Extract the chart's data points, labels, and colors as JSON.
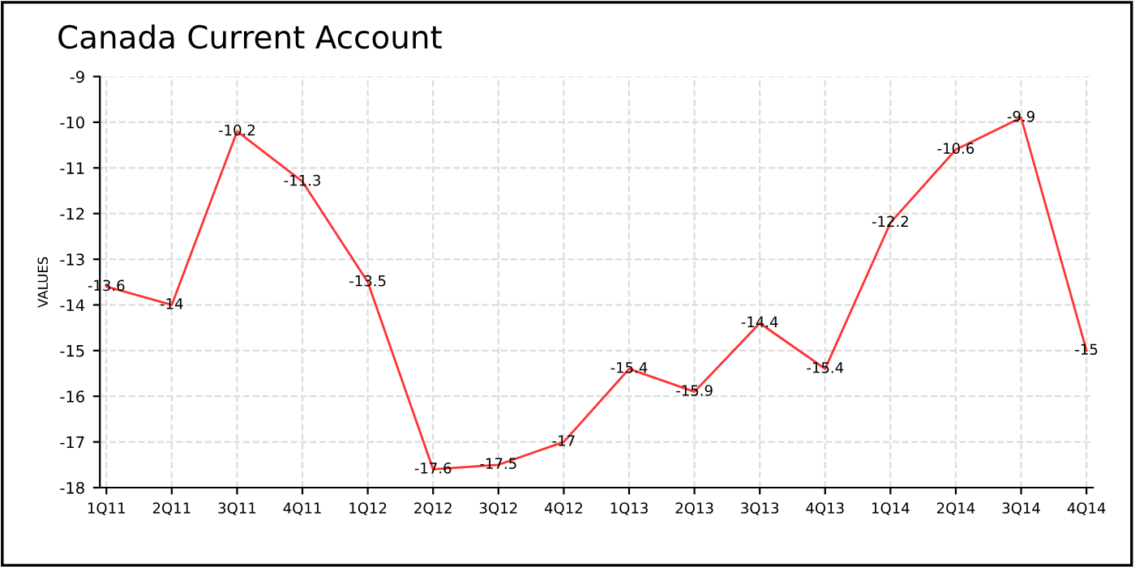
{
  "chart_data": {
    "type": "line",
    "title": "Canada Current Account",
    "ylabel": "VALUES",
    "categories": [
      "1Q11",
      "2Q11",
      "3Q11",
      "4Q11",
      "1Q12",
      "2Q12",
      "3Q12",
      "4Q12",
      "1Q13",
      "2Q13",
      "3Q13",
      "4Q13",
      "1Q14",
      "2Q14",
      "3Q14",
      "4Q14"
    ],
    "series": [
      {
        "color": "#ff3333",
        "values": [
          -13.6,
          -14,
          -10.2,
          -11.3,
          -13.5,
          -17.6,
          -17.5,
          -17,
          -15.4,
          -15.9,
          -14.4,
          -15.4,
          -12.2,
          -10.6,
          -9.9,
          -15
        ]
      }
    ],
    "ylim": [
      -18,
      -9
    ],
    "yticks": [
      -18,
      -17,
      -16,
      -15,
      -14,
      -13,
      -12,
      -11,
      -10,
      -9
    ],
    "grid": true,
    "data_labels": true,
    "marker": "none",
    "line_style": "solid"
  }
}
